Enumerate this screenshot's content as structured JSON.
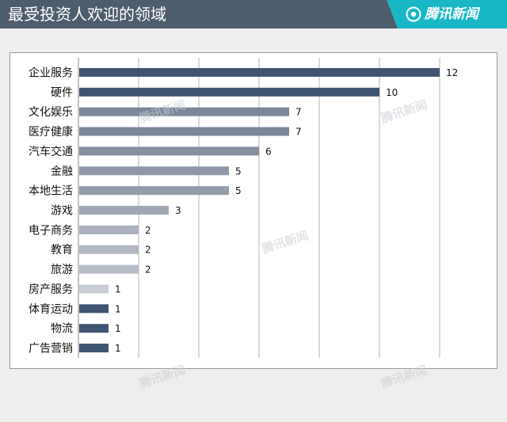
{
  "header": {
    "title": "最受投资人欢迎的领域",
    "brand": "腾讯新闻",
    "colors": {
      "bar": "#4e5d6d",
      "accent": "#19b7c6"
    }
  },
  "chart_data": {
    "type": "bar",
    "orientation": "horizontal",
    "title": "最受投资人欢迎的领域",
    "categories": [
      "企业服务",
      "硬件",
      "文化娱乐",
      "医疗健康",
      "汽车交通",
      "金融",
      "本地生活",
      "游戏",
      "电子商务",
      "教育",
      "旅游",
      "房产服务",
      "体育运动",
      "物流",
      "广告营销"
    ],
    "values": [
      12,
      10,
      7,
      7,
      6,
      5,
      5,
      3,
      2,
      2,
      2,
      1,
      1,
      1,
      1
    ],
    "bar_colors": [
      "#3f5470",
      "#3f5470",
      "#7a8699",
      "#7a8699",
      "#858f9e",
      "#8e98a8",
      "#939ca9",
      "#a0a8b4",
      "#aab1bc",
      "#b2b8c2",
      "#b8bec7",
      "#c8ccd3",
      "#3f5470",
      "#3f5470",
      "#3f5470"
    ],
    "xlim": [
      0,
      13
    ],
    "grid": true,
    "watermark": "腾讯新闻"
  }
}
